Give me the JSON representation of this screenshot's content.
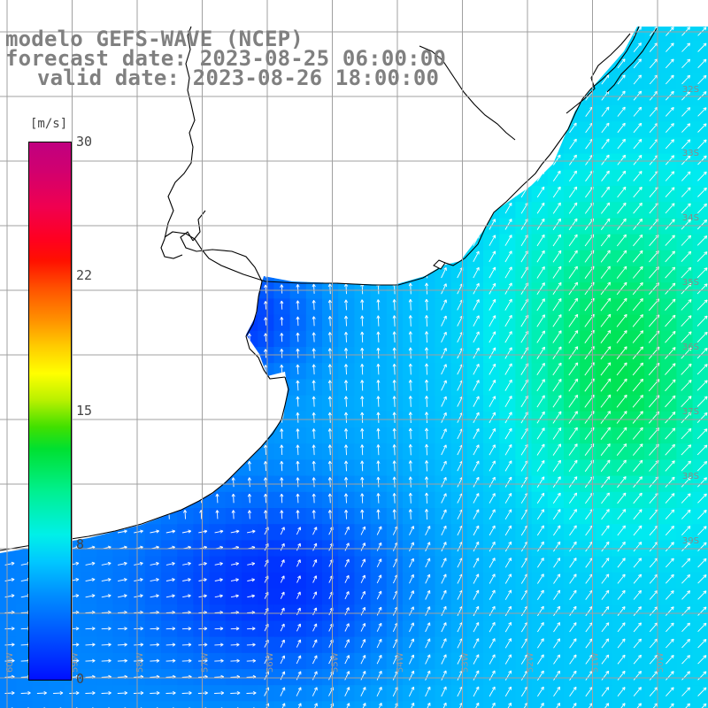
{
  "header": {
    "model": "modelo GEFS-WAVE (NCEP)",
    "forecast_date": "forecast date: 2023-08-25 06:00:00",
    "valid_date": "valid date: 2023-08-26 18:00:00"
  },
  "colorbar": {
    "unit": "[m/s]",
    "ticks": [
      "30",
      "22",
      "15",
      "8",
      "0"
    ],
    "range": [
      0,
      30
    ],
    "colors": {
      "low": "#0010ff",
      "mid_low": "#00f0e8",
      "mid": "#00e030",
      "mid_high": "#ffff00",
      "high": "#ff1000",
      "max": "#c00080"
    }
  },
  "map": {
    "latitude_labels": [
      "32S",
      "33S",
      "34S",
      "35S",
      "36S",
      "37S",
      "38S",
      "39S"
    ],
    "longitude_labels": [
      "60W",
      "59W",
      "58W",
      "57W",
      "56W",
      "55W",
      "54W",
      "53W",
      "52W",
      "51W",
      "50W"
    ],
    "land_color": "#ffffff",
    "coast_color": "#000000",
    "grid_color": "#a0a0a0",
    "arrow_color": "#ffffff",
    "variable": "wind speed and direction"
  }
}
